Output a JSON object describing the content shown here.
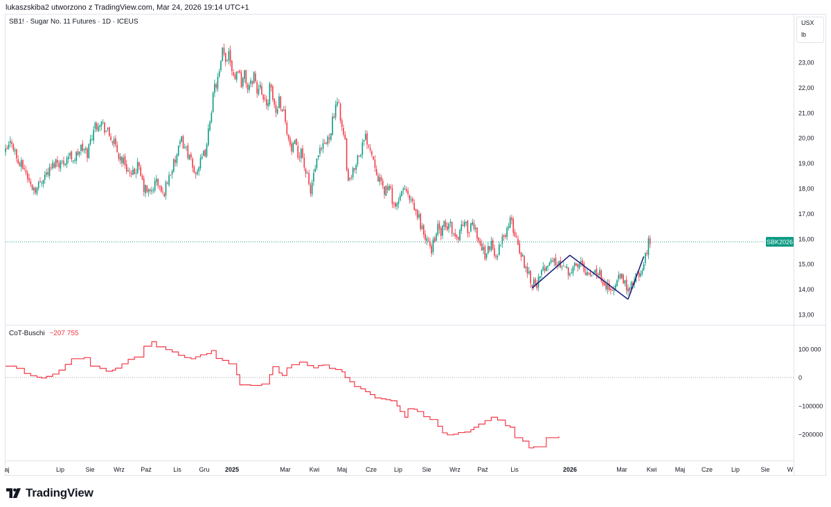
{
  "header": {
    "caption": "lukaszskiba2 utworzono z TradingView.com, Mar 24, 2026 19:14 UTC+1"
  },
  "price_pane": {
    "symbol": "SB1! · Sugar No. 11 Futures · 1D · ICEUS",
    "unit_top": "USX",
    "unit_bottom": "lb",
    "last_label": "SBK2026",
    "last_value": 15.88,
    "y_ticks": [
      "23,00",
      "22,00",
      "21,00",
      "20,00",
      "19,00",
      "18,00",
      "17,00",
      "16,00",
      "15,00",
      "14,00",
      "13,00"
    ]
  },
  "indicator_pane": {
    "name": "CoT-Buschi",
    "value": "−207 755",
    "y_ticks": [
      "100 000",
      "0",
      "−100000",
      "−200000"
    ]
  },
  "time_axis": [
    "aj",
    "Lip",
    "Sie",
    "Wrz",
    "Paź",
    "Lis",
    "Gru",
    "2025",
    "Mar",
    "Kwi",
    "Maj",
    "Cze",
    "Lip",
    "Sie",
    "Wrz",
    "Paź",
    "Lis",
    "2026",
    "Mar",
    "Kwi",
    "Maj",
    "Cze",
    "Lip",
    "Sie",
    "W"
  ],
  "brand": {
    "name": "TradingView"
  },
  "colors": {
    "up": "#089981",
    "down": "#f23645",
    "cot": "#f23645",
    "pattern": "#1a237e",
    "last_line": "#089981",
    "text": "#131722"
  },
  "chart_data": [
    {
      "type": "candlestick",
      "title": "SB1! · Sugar No. 11 Futures · 1D · ICEUS",
      "unit": "USX / lb",
      "ylim": [
        12.7,
        23.8
      ],
      "x": [
        "aj",
        "Lip",
        "Sie",
        "Wrz",
        "Paź",
        "Lis",
        "Gru",
        "2025",
        "Mar",
        "Kwi",
        "Maj",
        "Cze",
        "Lip",
        "Sie",
        "Wrz",
        "Paź",
        "Lis",
        "2026",
        "Mar",
        "Kwi",
        "Maj",
        "Cze",
        "Lip",
        "Sie",
        "W"
      ],
      "close_path": [
        [
          0,
          19.4
        ],
        [
          4,
          19.9
        ],
        [
          8,
          19.0
        ],
        [
          12,
          18.8
        ],
        [
          16,
          18.1
        ],
        [
          20,
          18.0
        ],
        [
          24,
          18.5
        ],
        [
          28,
          18.7
        ],
        [
          32,
          19.1
        ],
        [
          36,
          19.0
        ],
        [
          40,
          19.3
        ],
        [
          44,
          19.2
        ],
        [
          48,
          19.6
        ],
        [
          52,
          19.4
        ],
        [
          56,
          20.4
        ],
        [
          60,
          20.7
        ],
        [
          64,
          20.3
        ],
        [
          68,
          19.9
        ],
        [
          72,
          19.3
        ],
        [
          76,
          19.0
        ],
        [
          80,
          18.4
        ],
        [
          84,
          18.9
        ],
        [
          88,
          18.0
        ],
        [
          92,
          17.8
        ],
        [
          96,
          18.3
        ],
        [
          100,
          17.7
        ],
        [
          104,
          18.5
        ],
        [
          108,
          19.1
        ],
        [
          112,
          19.9
        ],
        [
          116,
          19.4
        ],
        [
          120,
          18.6
        ],
        [
          124,
          19.0
        ],
        [
          128,
          19.6
        ],
        [
          130,
          20.8
        ],
        [
          133,
          22.0
        ],
        [
          136,
          22.5
        ],
        [
          138,
          23.4
        ],
        [
          140,
          23.0
        ],
        [
          142,
          23.5
        ],
        [
          144,
          22.8
        ],
        [
          146,
          22.4
        ],
        [
          148,
          22.8
        ],
        [
          150,
          22.2
        ],
        [
          152,
          22.5
        ],
        [
          154,
          22.0
        ],
        [
          156,
          22.1
        ],
        [
          158,
          22.6
        ],
        [
          160,
          21.8
        ],
        [
          162,
          22.3
        ],
        [
          164,
          21.5
        ],
        [
          166,
          21.2
        ],
        [
          168,
          22.0
        ],
        [
          170,
          21.6
        ],
        [
          172,
          21.0
        ],
        [
          174,
          21.6
        ],
        [
          176,
          21.2
        ],
        [
          178,
          20.8
        ],
        [
          180,
          19.9
        ],
        [
          182,
          19.5
        ],
        [
          184,
          19.7
        ],
        [
          186,
          19.3
        ],
        [
          188,
          19.6
        ],
        [
          190,
          18.9
        ],
        [
          192,
          18.4
        ],
        [
          194,
          17.8
        ],
        [
          196,
          18.6
        ],
        [
          198,
          19.0
        ],
        [
          200,
          19.4
        ],
        [
          202,
          19.6
        ],
        [
          204,
          19.8
        ],
        [
          206,
          20.1
        ],
        [
          208,
          20.7
        ],
        [
          210,
          21.1
        ],
        [
          212,
          21.4
        ],
        [
          214,
          20.4
        ],
        [
          216,
          19.8
        ],
        [
          217,
          18.7
        ],
        [
          219,
          18.2
        ],
        [
          221,
          18.6
        ],
        [
          223,
          19.1
        ],
        [
          225,
          19.4
        ],
        [
          227,
          19.7
        ],
        [
          229,
          20.0
        ],
        [
          231,
          19.8
        ],
        [
          233,
          19.4
        ],
        [
          235,
          19.0
        ],
        [
          237,
          18.5
        ],
        [
          239,
          18.1
        ],
        [
          241,
          17.9
        ],
        [
          243,
          18.1
        ],
        [
          245,
          17.8
        ],
        [
          247,
          17.4
        ],
        [
          249,
          17.2
        ],
        [
          251,
          17.6
        ],
        [
          253,
          18.1
        ],
        [
          255,
          17.8
        ],
        [
          257,
          17.5
        ],
        [
          259,
          17.3
        ],
        [
          261,
          17.0
        ],
        [
          263,
          16.8
        ],
        [
          265,
          16.4
        ],
        [
          267,
          16.0
        ],
        [
          269,
          15.8
        ],
        [
          271,
          15.6
        ],
        [
          273,
          16.1
        ],
        [
          275,
          16.4
        ],
        [
          277,
          16.2
        ],
        [
          279,
          16.5
        ],
        [
          281,
          16.4
        ],
        [
          283,
          16.6
        ],
        [
          285,
          16.2
        ],
        [
          287,
          16.0
        ],
        [
          289,
          16.3
        ],
        [
          291,
          16.7
        ],
        [
          293,
          16.5
        ],
        [
          295,
          16.3
        ],
        [
          297,
          16.5
        ],
        [
          299,
          16.4
        ],
        [
          301,
          16.0
        ],
        [
          303,
          15.6
        ],
        [
          305,
          15.4
        ],
        [
          307,
          15.6
        ],
        [
          309,
          15.8
        ],
        [
          311,
          15.3
        ],
        [
          313,
          15.5
        ],
        [
          315,
          15.8
        ],
        [
          317,
          16.1
        ],
        [
          319,
          16.4
        ],
        [
          321,
          16.7
        ],
        [
          323,
          16.4
        ],
        [
          325,
          16.0
        ],
        [
          327,
          15.6
        ],
        [
          329,
          15.2
        ],
        [
          331,
          14.9
        ],
        [
          333,
          14.6
        ],
        [
          335,
          14.3
        ],
        [
          337,
          14.2
        ],
        [
          339,
          14.3
        ],
        [
          341,
          14.6
        ],
        [
          343,
          14.9
        ],
        [
          345,
          15.1
        ],
        [
          347,
          15.0
        ],
        [
          349,
          15.2
        ],
        [
          351,
          14.9
        ],
        [
          353,
          15.0
        ],
        [
          355,
          15.1
        ],
        [
          357,
          14.8
        ],
        [
          359,
          14.7
        ],
        [
          361,
          15.0
        ],
        [
          363,
          14.8
        ],
        [
          365,
          15.0
        ],
        [
          367,
          15.1
        ],
        [
          369,
          14.7
        ],
        [
          371,
          14.8
        ],
        [
          373,
          14.6
        ],
        [
          375,
          14.9
        ],
        [
          377,
          14.6
        ],
        [
          379,
          14.5
        ],
        [
          381,
          14.3
        ],
        [
          383,
          14.1
        ],
        [
          385,
          13.9
        ],
        [
          387,
          14.0
        ],
        [
          389,
          14.3
        ],
        [
          391,
          14.5
        ],
        [
          393,
          14.3
        ],
        [
          395,
          14.1
        ],
        [
          397,
          13.9
        ],
        [
          399,
          14.3
        ],
        [
          401,
          14.5
        ],
        [
          403,
          14.4
        ],
        [
          405,
          14.8
        ],
        [
          407,
          15.3
        ],
        [
          409,
          15.8
        ],
        [
          410,
          15.88
        ]
      ],
      "last_value": 15.88,
      "pattern_lines": [
        [
          [
            335,
            14.05
          ],
          [
            359,
            15.35
          ]
        ],
        [
          [
            359,
            15.35
          ],
          [
            396,
            13.6
          ]
        ],
        [
          [
            396,
            13.6
          ],
          [
            406,
            15.3
          ]
        ]
      ]
    },
    {
      "type": "line",
      "title": "CoT-Buschi",
      "ylim": [
        -280000,
        160000
      ],
      "last_value": -207755,
      "steps": [
        [
          0,
          40000
        ],
        [
          7,
          32000
        ],
        [
          12,
          14000
        ],
        [
          16,
          6000
        ],
        [
          20,
          1000
        ],
        [
          23,
          -2000
        ],
        [
          26,
          4000
        ],
        [
          30,
          12000
        ],
        [
          34,
          26000
        ],
        [
          38,
          46000
        ],
        [
          42,
          66000
        ],
        [
          50,
          70000
        ],
        [
          54,
          40000
        ],
        [
          60,
          32000
        ],
        [
          64,
          22000
        ],
        [
          68,
          26000
        ],
        [
          70,
          33000
        ],
        [
          74,
          48000
        ],
        [
          78,
          64000
        ],
        [
          82,
          72000
        ],
        [
          88,
          110000
        ],
        [
          93,
          126000
        ],
        [
          96,
          108000
        ],
        [
          102,
          98000
        ],
        [
          106,
          90000
        ],
        [
          110,
          78000
        ],
        [
          114,
          70000
        ],
        [
          118,
          66000
        ],
        [
          121,
          73000
        ],
        [
          124,
          80000
        ],
        [
          128,
          84000
        ],
        [
          131,
          95000
        ],
        [
          134,
          67000
        ],
        [
          138,
          60000
        ],
        [
          142,
          48000
        ],
        [
          147,
          10000
        ],
        [
          149,
          -26000
        ],
        [
          156,
          -28000
        ],
        [
          163,
          -23000
        ],
        [
          168,
          10000
        ],
        [
          170,
          38000
        ],
        [
          174,
          16000
        ],
        [
          176,
          7000
        ],
        [
          179,
          34000
        ],
        [
          182,
          45000
        ],
        [
          187,
          54000
        ],
        [
          192,
          42000
        ],
        [
          196,
          34000
        ],
        [
          199,
          42000
        ],
        [
          202,
          44000
        ],
        [
          206,
          32000
        ],
        [
          210,
          28000
        ],
        [
          214,
          20000
        ],
        [
          216,
          0
        ],
        [
          219,
          -15000
        ],
        [
          222,
          -32000
        ],
        [
          226,
          -40000
        ],
        [
          229,
          -50000
        ],
        [
          232,
          -60000
        ],
        [
          235,
          -72000
        ],
        [
          239,
          -75000
        ],
        [
          242,
          -78000
        ],
        [
          245,
          -82000
        ],
        [
          249,
          -100000
        ],
        [
          251,
          -120000
        ],
        [
          254,
          -140000
        ],
        [
          256,
          -110000
        ],
        [
          260,
          -112000
        ],
        [
          262,
          -120000
        ],
        [
          266,
          -138000
        ],
        [
          270,
          -148000
        ],
        [
          275,
          -172000
        ],
        [
          278,
          -195000
        ],
        [
          281,
          -202000
        ],
        [
          285,
          -200000
        ],
        [
          288,
          -194000
        ],
        [
          292,
          -192000
        ],
        [
          296,
          -184000
        ],
        [
          298,
          -175000
        ],
        [
          301,
          -164000
        ],
        [
          305,
          -152000
        ],
        [
          309,
          -140000
        ],
        [
          313,
          -150000
        ],
        [
          318,
          -170000
        ],
        [
          321,
          -175000
        ],
        [
          324,
          -212000
        ],
        [
          329,
          -224000
        ],
        [
          333,
          -248000
        ],
        [
          336,
          -244000
        ],
        [
          344,
          -212000
        ],
        [
          352,
          -207755
        ]
      ],
      "zero_line": true
    }
  ]
}
